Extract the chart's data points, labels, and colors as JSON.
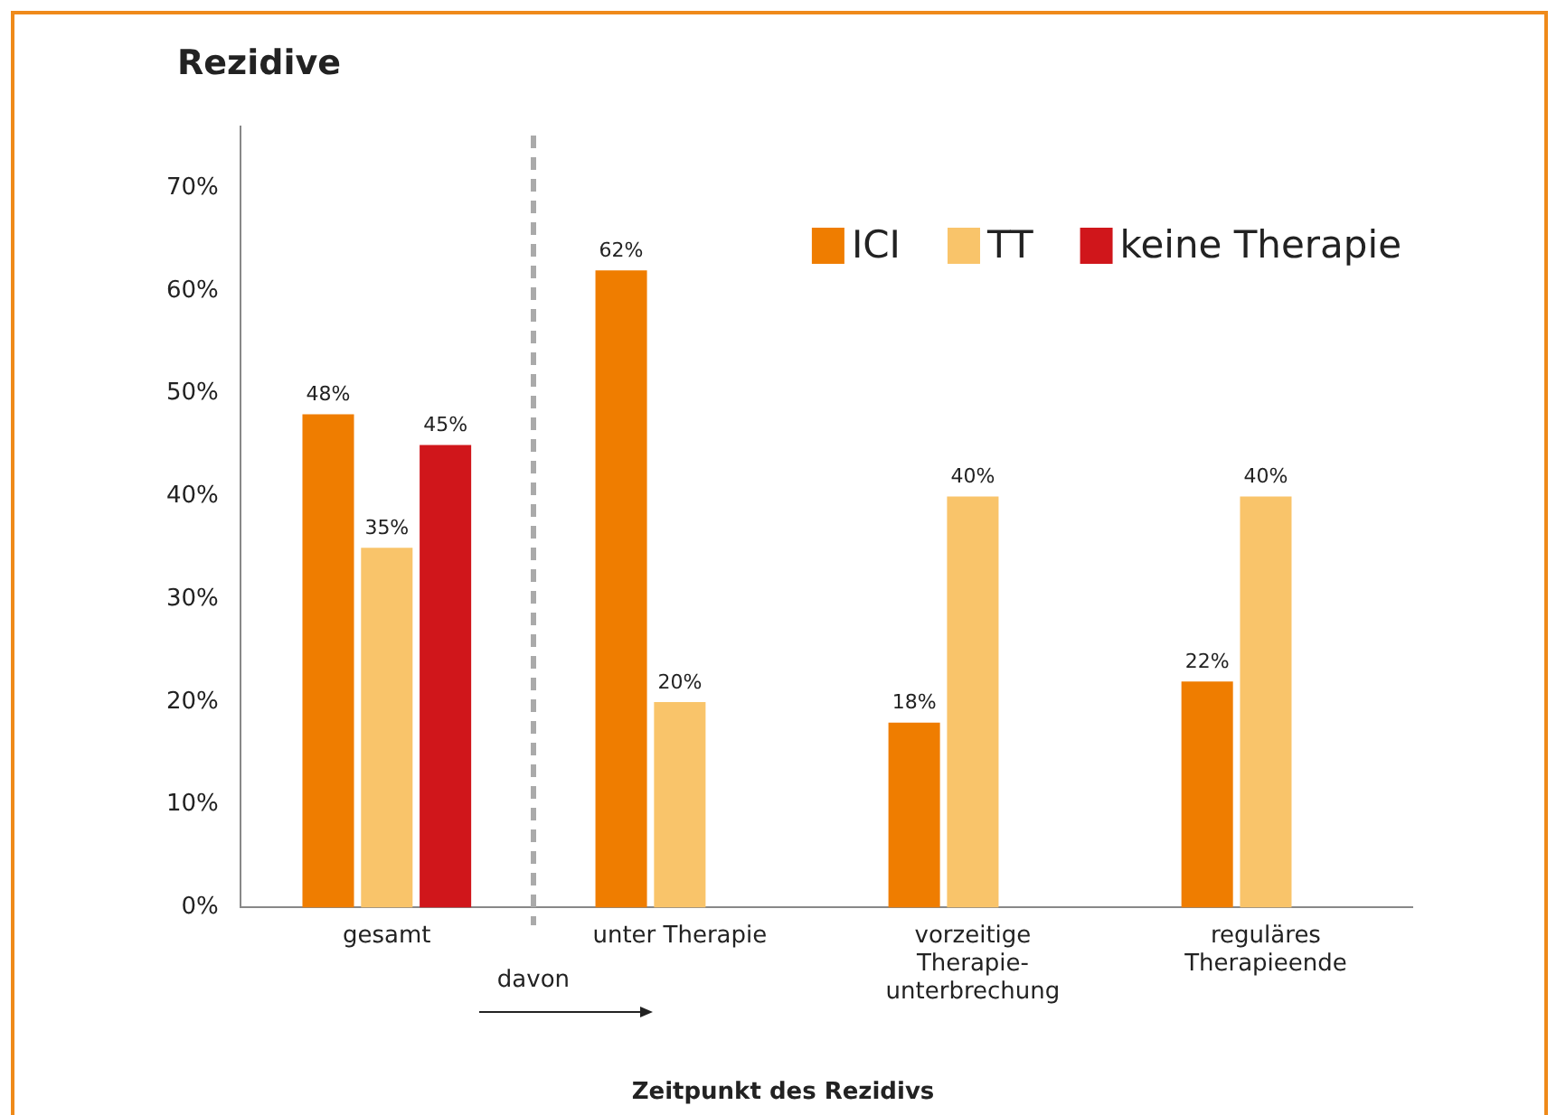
{
  "chart_data": {
    "type": "bar",
    "title": "Rezidive",
    "xlabel": "Zeitpunkt des Rezidivs",
    "categories": [
      "gesamt",
      "unter Therapie",
      "vorzeitige\nTherapie-\nunterbrechung",
      "reguläres\nTherapieende"
    ],
    "series": [
      {
        "name": "ICI",
        "color": "#ef7d00",
        "values": [
          48,
          62,
          18,
          22
        ],
        "value_labels": [
          "48%",
          "62%",
          "18%",
          "22%"
        ]
      },
      {
        "name": "TT",
        "color": "#f9c46a",
        "values": [
          35,
          20,
          40,
          40
        ],
        "value_labels": [
          "35%",
          "20%",
          "40%",
          "40%"
        ]
      },
      {
        "name": "keine Therapie",
        "color": "#d0161b",
        "values": [
          45,
          null,
          null,
          null
        ],
        "value_labels": [
          "45%",
          null,
          null,
          null
        ]
      }
    ],
    "ylim": [
      0,
      76
    ],
    "yticks": [
      {
        "value": 0,
        "label": "0%"
      },
      {
        "value": 10,
        "label": "10%"
      },
      {
        "value": 20,
        "label": "20%"
      },
      {
        "value": 30,
        "label": "30%"
      },
      {
        "value": 40,
        "label": "40%"
      },
      {
        "value": 50,
        "label": "50%"
      },
      {
        "value": 60,
        "label": "60%"
      },
      {
        "value": 70,
        "label": "70%"
      }
    ],
    "annotations": [
      "davon"
    ],
    "grid": false,
    "legend": "top right"
  }
}
